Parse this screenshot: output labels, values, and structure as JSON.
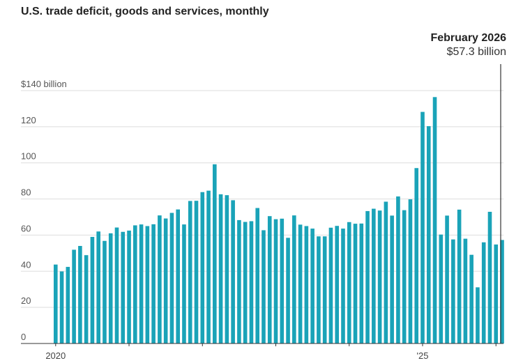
{
  "chart_data": {
    "type": "bar",
    "title": "U.S. trade deficit, goods and services, monthly",
    "annotation": {
      "label": "February 2026",
      "value_text": "$57.3 billion"
    },
    "y_tick_labels": [
      "$140 billion",
      "120",
      "100",
      "80",
      "60",
      "40",
      "20",
      "0"
    ],
    "y_tick_values": [
      140,
      120,
      100,
      80,
      60,
      40,
      20,
      0
    ],
    "ylim": [
      0,
      140
    ],
    "x_tick_labels": [
      {
        "label": "2020",
        "index": 0
      },
      {
        "label": "'25",
        "index": 60
      }
    ],
    "start": "2020-01",
    "end": "2026-02",
    "bar_color": "#1aa3b8",
    "values": [
      43.7,
      39.9,
      42.4,
      51.9,
      54.0,
      48.9,
      59.0,
      62.0,
      56.8,
      61.0,
      64.2,
      61.8,
      62.5,
      65.4,
      65.9,
      65.0,
      66.0,
      70.9,
      69.2,
      72.3,
      74.2,
      65.9,
      78.9,
      79.0,
      83.8,
      84.6,
      99.2,
      82.6,
      82.1,
      79.3,
      68.3,
      67.3,
      67.7,
      75.0,
      62.7,
      70.5,
      68.8,
      69.1,
      58.5,
      70.9,
      65.8,
      65.0,
      63.6,
      59.3,
      59.3,
      64.1,
      65.1,
      63.6,
      67.2,
      66.3,
      66.4,
      73.3,
      74.6,
      73.6,
      78.5,
      70.8,
      81.4,
      73.8,
      79.8,
      97.1,
      128.2,
      120.3,
      136.4,
      60.3,
      70.8,
      57.6,
      74.1,
      58.0,
      49.1,
      31.1,
      56.0,
      72.9,
      54.8,
      57.3
    ]
  }
}
